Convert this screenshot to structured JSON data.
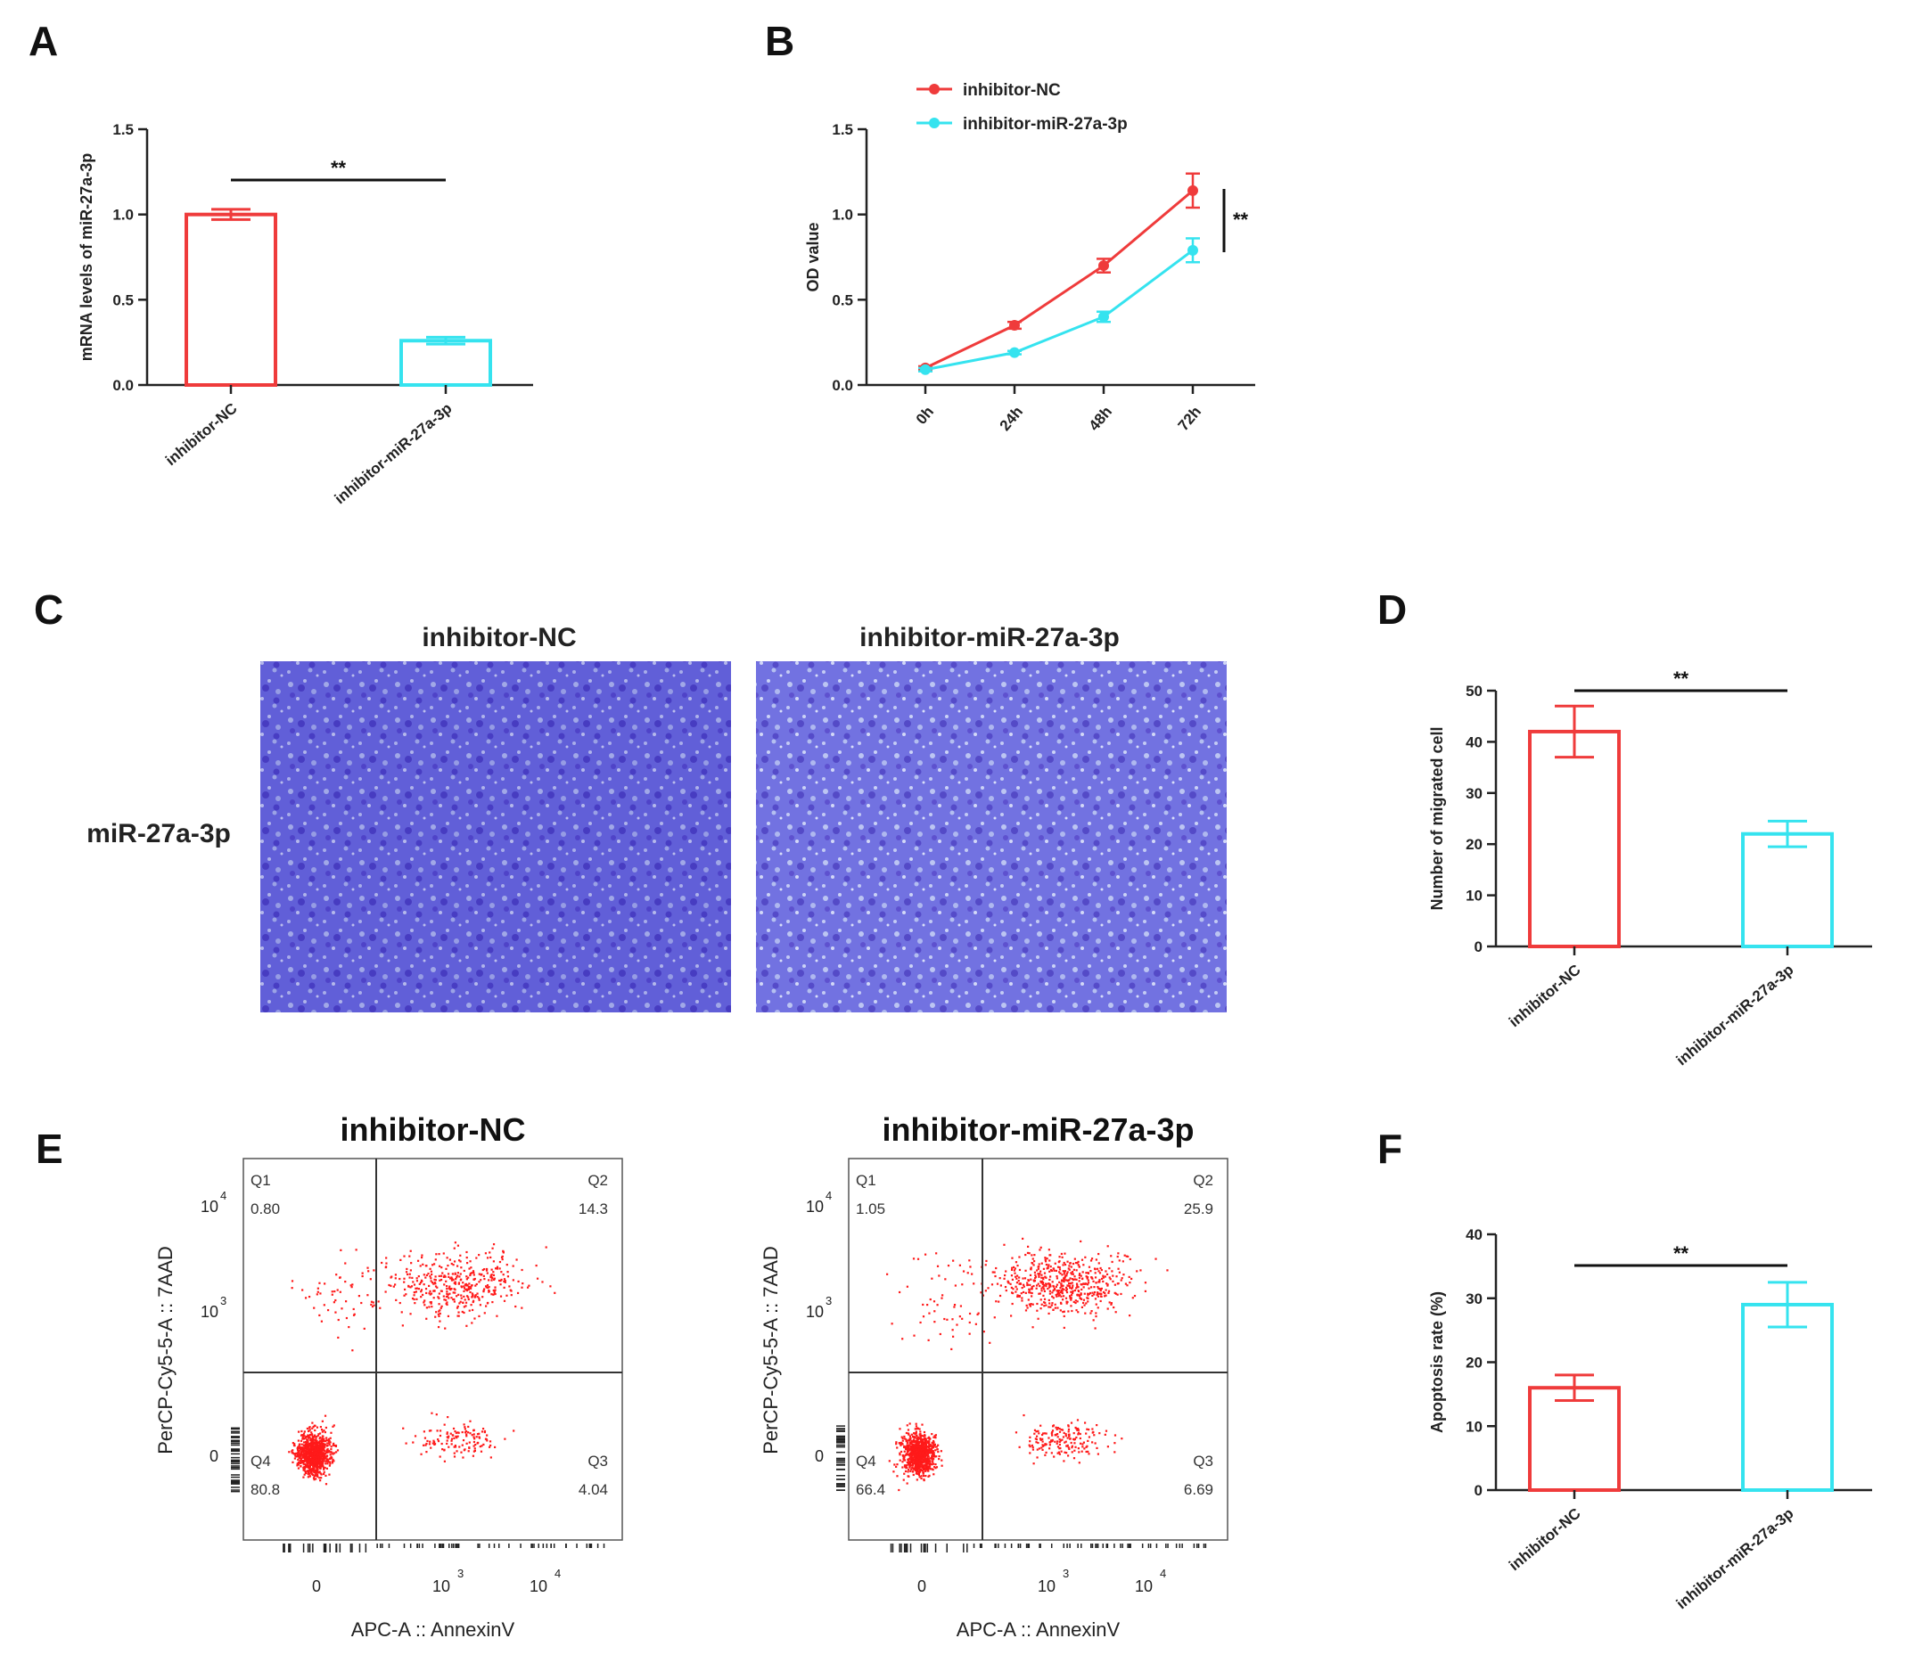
{
  "panel_letters": [
    "A",
    "B",
    "C",
    "D",
    "E",
    "F"
  ],
  "colors": {
    "nc": "#ef3b3b",
    "mir": "#35e3ef",
    "axis": "#222222",
    "stain": "#5a5ad6",
    "dot": "#ff1a1a"
  },
  "significance": "**",
  "chart_data": [
    {
      "panel": "A",
      "type": "bar",
      "categories": [
        "inhibitor-NC",
        "inhibitor-miR-27a-3p"
      ],
      "values": [
        1.0,
        0.26
      ],
      "errors": [
        0.03,
        0.02
      ],
      "ylabel": "mRNA levels of miR-27a-3p",
      "ylim": [
        0,
        1.5
      ],
      "yticks": [
        "0.0",
        "0.5",
        "1.0",
        "1.5"
      ],
      "significance": "**",
      "bar_colors": [
        "#ef3b3b",
        "#35e3ef"
      ]
    },
    {
      "panel": "B",
      "type": "line",
      "x": [
        "0h",
        "24h",
        "48h",
        "72h"
      ],
      "series": [
        {
          "name": "inhibitor-NC",
          "values": [
            0.1,
            0.35,
            0.7,
            1.14
          ],
          "errors": [
            0.01,
            0.02,
            0.04,
            0.1
          ],
          "color": "#ef3b3b"
        },
        {
          "name": "inhibitor-miR-27a-3p",
          "values": [
            0.09,
            0.19,
            0.4,
            0.79
          ],
          "errors": [
            0.01,
            0.01,
            0.03,
            0.07
          ],
          "color": "#35e3ef"
        }
      ],
      "ylabel": "OD value",
      "ylim": [
        0,
        1.5
      ],
      "yticks": [
        "0.0",
        "0.5",
        "1.0",
        "1.5"
      ],
      "significance": "**",
      "legend": "top-left"
    },
    {
      "panel": "D",
      "type": "bar",
      "categories": [
        "inhibitor-NC",
        "inhibitor-miR-27a-3p"
      ],
      "values": [
        42,
        22
      ],
      "errors": [
        5,
        2.5
      ],
      "ylabel": "Number of migrated cell",
      "ylim": [
        0,
        50
      ],
      "yticks": [
        "0",
        "10",
        "20",
        "30",
        "40",
        "50"
      ],
      "significance": "**",
      "bar_colors": [
        "#ef3b3b",
        "#35e3ef"
      ]
    },
    {
      "panel": "F",
      "type": "bar",
      "categories": [
        "inhibitor-NC",
        "inhibitor-miR-27a-3p"
      ],
      "values": [
        16,
        29
      ],
      "errors": [
        2,
        3.5
      ],
      "ylabel": "Apoptosis rate (%)",
      "ylim": [
        0,
        40
      ],
      "yticks": [
        "0",
        "10",
        "20",
        "30",
        "40"
      ],
      "significance": "**",
      "bar_colors": [
        "#ef3b3b",
        "#35e3ef"
      ]
    },
    {
      "panel": "E",
      "type": "scatter",
      "plots": [
        {
          "title": "inhibitor-NC",
          "quadrants": {
            "Q1": "0.80",
            "Q2": "14.3",
            "Q3": "4.04",
            "Q4": "80.8"
          }
        },
        {
          "title": "inhibitor-miR-27a-3p",
          "quadrants": {
            "Q1": "1.05",
            "Q2": "25.9",
            "Q3": "6.69",
            "Q4": "66.4"
          }
        }
      ],
      "xlabel": "APC-A :: AnnexinV",
      "ylabel": "PerCP-Cy5-5-A :: 7AAD",
      "xticks": [
        "0",
        "10",
        "10"
      ],
      "x_exponents": [
        "",
        "3",
        "4"
      ],
      "yticks": [
        "10",
        "10",
        "0"
      ],
      "y_exponents": [
        "4",
        "3",
        ""
      ],
      "quadrant_names": [
        "Q1",
        "Q2",
        "Q3",
        "Q4"
      ]
    }
  ],
  "panel_c": {
    "row_label": "miR-27a-3p",
    "column_labels": [
      "inhibitor-NC",
      "inhibitor-miR-27a-3p"
    ]
  }
}
